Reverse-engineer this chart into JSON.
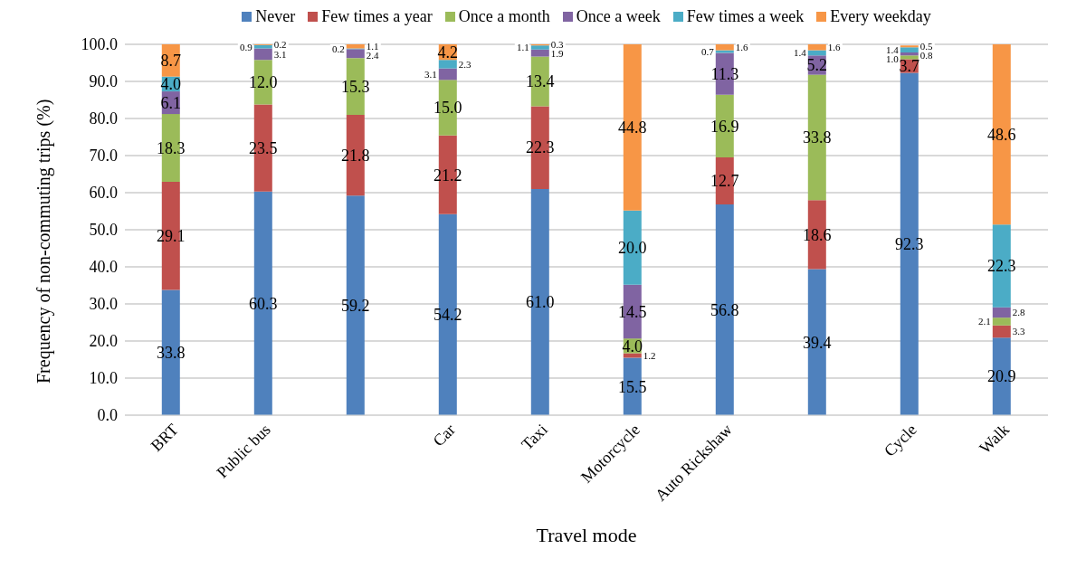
{
  "chart_data": {
    "type": "bar",
    "stacked": true,
    "xlabel": "Travel mode",
    "ylabel": "Frequency of non-commuting trips (%)",
    "categories": [
      "BRT",
      "Public bus",
      null,
      "Car",
      "Taxi",
      "Motorcycle",
      "Auto Rickshaw",
      null,
      "Cycle",
      "Walk"
    ],
    "series": [
      {
        "name": "Never",
        "color": "#4f81bd",
        "values": [
          33.8,
          60.3,
          59.2,
          54.2,
          61.0,
          15.5,
          56.8,
          39.4,
          92.3,
          20.9
        ],
        "value_labels": [
          "33.8",
          "60.3",
          "59.2",
          "54.2",
          "61.0",
          "15.5",
          "56.8",
          "39.4",
          "92.3",
          "20.9"
        ]
      },
      {
        "name": "Few times a year",
        "color": "#c0504d",
        "values": [
          29.1,
          23.5,
          21.8,
          21.2,
          22.3,
          1.2,
          12.7,
          18.6,
          3.7,
          3.3
        ],
        "value_labels": [
          "29.1",
          "23.5",
          "21.8",
          "21.2",
          "22.3",
          "1.2",
          "12.7",
          "18.6",
          "3.7",
          "3.3"
        ]
      },
      {
        "name": "Once a month",
        "color": "#9bbb59",
        "values": [
          18.3,
          12.0,
          15.3,
          15.0,
          13.4,
          4.0,
          16.9,
          33.8,
          1.0,
          2.1
        ],
        "value_labels": [
          "18.3",
          "12.0",
          "15.3",
          "15.0",
          "13.4",
          "4.0",
          "16.9",
          "33.8",
          "1.0",
          "2.1"
        ]
      },
      {
        "name": "Once a week",
        "color": "#8064a2",
        "values": [
          6.1,
          3.1,
          2.4,
          3.1,
          1.9,
          14.5,
          11.3,
          5.2,
          0.8,
          2.8
        ],
        "value_labels": [
          "6.1",
          "3.1",
          "2.4",
          "3.1",
          "1.9",
          "14.5",
          "11.3",
          "5.2",
          "0.8",
          "2.8"
        ]
      },
      {
        "name": "Few times a week",
        "color": "#4bacc6",
        "values": [
          4.0,
          0.9,
          0.2,
          2.3,
          1.1,
          20.0,
          0.7,
          1.4,
          1.4,
          22.3
        ],
        "value_labels": [
          "4.0",
          "0.9",
          "0.2",
          "2.3",
          "1.1",
          "20.0",
          "0.7",
          "1.4",
          "1.4",
          "22.3"
        ]
      },
      {
        "name": "Every weekday",
        "color": "#f79646",
        "values": [
          8.7,
          0.2,
          1.1,
          4.2,
          0.3,
          44.8,
          1.6,
          1.6,
          0.5,
          48.6
        ],
        "value_labels": [
          "8.7",
          "0.2",
          "1.1",
          "4.2",
          "0.3",
          "44.8",
          "1.6",
          "1.6",
          "0.5",
          "48.6"
        ]
      }
    ],
    "ylim": [
      0,
      100
    ],
    "yticks": [
      {
        "value": 0,
        "label": "0.0"
      },
      {
        "value": 10,
        "label": "10.0"
      },
      {
        "value": 20,
        "label": "20.0"
      },
      {
        "value": 30,
        "label": "30.0"
      },
      {
        "value": 40,
        "label": "40.0"
      },
      {
        "value": 50,
        "label": "50.0"
      },
      {
        "value": 60,
        "label": "60.0"
      },
      {
        "value": 70,
        "label": "70.0"
      },
      {
        "value": 80,
        "label": "80.0"
      },
      {
        "value": 90,
        "label": "90.0"
      },
      {
        "value": 100,
        "label": "100.0"
      }
    ],
    "grid": "y",
    "legend": "top"
  }
}
